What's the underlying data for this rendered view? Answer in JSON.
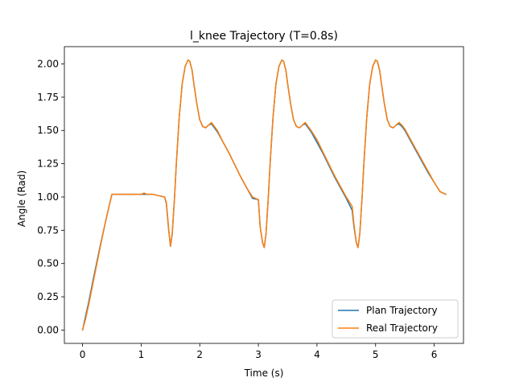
{
  "chart_data": {
    "type": "line",
    "title": "l_knee Trajectory (T=0.8s)",
    "xlabel": "Time (s)",
    "ylabel": "Angle (Rad)",
    "xlim": [
      -0.31,
      6.5
    ],
    "ylim": [
      -0.1,
      2.13
    ],
    "xticks": [
      0,
      1,
      2,
      3,
      4,
      5,
      6
    ],
    "xtick_labels": [
      "0",
      "1",
      "2",
      "3",
      "4",
      "5",
      "6"
    ],
    "yticks": [
      0.0,
      0.25,
      0.5,
      0.75,
      1.0,
      1.25,
      1.5,
      1.75,
      2.0
    ],
    "ytick_labels": [
      "0.00",
      "0.25",
      "0.50",
      "0.75",
      "1.00",
      "1.25",
      "1.50",
      "1.75",
      "2.00"
    ],
    "grid": false,
    "legend_position": "lower-right",
    "series": [
      {
        "name": "Plan Trajectory",
        "color": "#1f77b4",
        "x": [
          0,
          0.05,
          0.1,
          0.2,
          0.3,
          0.4,
          0.5,
          0.55,
          0.6,
          0.7,
          0.8,
          0.9,
          1.0,
          1.1,
          1.2,
          1.3,
          1.4,
          1.43,
          1.47,
          1.5,
          1.53,
          1.57,
          1.6,
          1.65,
          1.7,
          1.75,
          1.8,
          1.83,
          1.87,
          1.9,
          1.95,
          2.0,
          2.05,
          2.1,
          2.15,
          2.2,
          2.25,
          2.3,
          2.4,
          2.5,
          2.6,
          2.7,
          2.8,
          2.9,
          3.0,
          3.03,
          3.07,
          3.1,
          3.13,
          3.17,
          3.2,
          3.25,
          3.3,
          3.35,
          3.4,
          3.43,
          3.47,
          3.5,
          3.55,
          3.6,
          3.65,
          3.7,
          3.75,
          3.8,
          3.85,
          3.9,
          4.0,
          4.1,
          4.2,
          4.3,
          4.4,
          4.5,
          4.6,
          4.63,
          4.67,
          4.7,
          4.73,
          4.77,
          4.8,
          4.85,
          4.9,
          4.95,
          5.0,
          5.03,
          5.07,
          5.1,
          5.15,
          5.2,
          5.25,
          5.3,
          5.35,
          5.4,
          5.45,
          5.5,
          5.6,
          5.7,
          5.8,
          5.9,
          6.0,
          6.1,
          6.2
        ],
        "y": [
          0.0,
          0.1,
          0.2,
          0.42,
          0.63,
          0.83,
          1.02,
          1.02,
          1.02,
          1.02,
          1.02,
          1.02,
          1.02,
          1.02,
          1.02,
          1.01,
          1.0,
          0.95,
          0.75,
          0.63,
          0.72,
          1.0,
          1.25,
          1.6,
          1.85,
          1.98,
          2.03,
          2.02,
          1.95,
          1.85,
          1.7,
          1.58,
          1.53,
          1.52,
          1.54,
          1.55,
          1.52,
          1.49,
          1.41,
          1.33,
          1.24,
          1.15,
          1.07,
          0.99,
          0.98,
          0.78,
          0.66,
          0.62,
          0.72,
          1.0,
          1.25,
          1.6,
          1.85,
          1.98,
          2.03,
          2.02,
          1.95,
          1.85,
          1.7,
          1.58,
          1.53,
          1.52,
          1.54,
          1.55,
          1.52,
          1.49,
          1.41,
          1.33,
          1.24,
          1.15,
          1.07,
          0.99,
          0.9,
          0.78,
          0.66,
          0.62,
          0.72,
          1.0,
          1.25,
          1.6,
          1.85,
          1.98,
          2.03,
          2.02,
          1.95,
          1.85,
          1.7,
          1.58,
          1.53,
          1.52,
          1.54,
          1.55,
          1.53,
          1.5,
          1.42,
          1.34,
          1.26,
          1.18,
          1.11,
          1.04,
          1.02
        ]
      },
      {
        "name": "Real Trajectory",
        "color": "#ff7f0e",
        "x": [
          0,
          0.05,
          0.1,
          0.2,
          0.3,
          0.4,
          0.5,
          0.55,
          0.6,
          0.7,
          0.8,
          0.9,
          1.0,
          1.05,
          1.1,
          1.2,
          1.3,
          1.4,
          1.43,
          1.47,
          1.5,
          1.53,
          1.57,
          1.6,
          1.65,
          1.7,
          1.75,
          1.8,
          1.83,
          1.87,
          1.9,
          1.95,
          2.0,
          2.05,
          2.1,
          2.15,
          2.2,
          2.25,
          2.3,
          2.4,
          2.5,
          2.6,
          2.7,
          2.8,
          2.9,
          3.0,
          3.03,
          3.07,
          3.1,
          3.13,
          3.17,
          3.2,
          3.25,
          3.3,
          3.35,
          3.4,
          3.43,
          3.47,
          3.5,
          3.55,
          3.6,
          3.65,
          3.7,
          3.75,
          3.8,
          3.85,
          3.9,
          4.0,
          4.1,
          4.2,
          4.3,
          4.4,
          4.5,
          4.6,
          4.63,
          4.67,
          4.7,
          4.73,
          4.77,
          4.8,
          4.85,
          4.9,
          4.95,
          5.0,
          5.03,
          5.07,
          5.1,
          5.15,
          5.2,
          5.25,
          5.3,
          5.35,
          5.4,
          5.45,
          5.5,
          5.6,
          5.7,
          5.8,
          5.9,
          6.0,
          6.1,
          6.2
        ],
        "y": [
          0.0,
          0.08,
          0.18,
          0.4,
          0.62,
          0.83,
          1.02,
          1.02,
          1.02,
          1.02,
          1.02,
          1.02,
          1.02,
          1.03,
          1.02,
          1.02,
          1.01,
          1.0,
          0.96,
          0.76,
          0.63,
          0.73,
          1.0,
          1.25,
          1.6,
          1.85,
          1.98,
          2.03,
          2.02,
          1.95,
          1.85,
          1.7,
          1.58,
          1.53,
          1.52,
          1.54,
          1.56,
          1.53,
          1.5,
          1.41,
          1.33,
          1.24,
          1.15,
          1.07,
          1.0,
          0.98,
          0.78,
          0.66,
          0.62,
          0.72,
          1.0,
          1.25,
          1.6,
          1.85,
          1.98,
          2.03,
          2.02,
          1.95,
          1.85,
          1.7,
          1.58,
          1.53,
          1.52,
          1.54,
          1.56,
          1.53,
          1.5,
          1.43,
          1.34,
          1.25,
          1.16,
          1.08,
          1.0,
          0.93,
          0.8,
          0.66,
          0.62,
          0.72,
          1.0,
          1.25,
          1.6,
          1.85,
          1.98,
          2.03,
          2.02,
          1.95,
          1.85,
          1.7,
          1.58,
          1.53,
          1.52,
          1.54,
          1.56,
          1.54,
          1.51,
          1.43,
          1.35,
          1.27,
          1.19,
          1.11,
          1.04,
          1.02
        ]
      }
    ]
  }
}
